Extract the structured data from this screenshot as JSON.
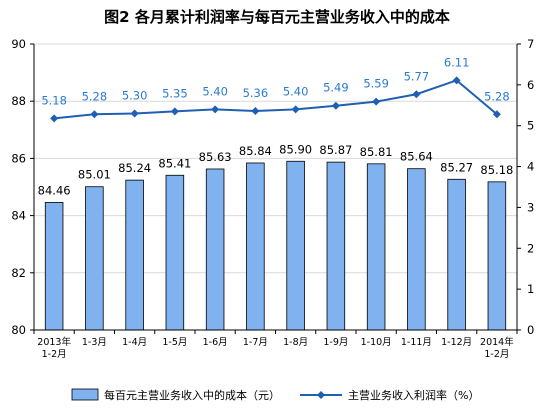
{
  "chart_data": {
    "type": "bar+line",
    "title": "图2  各月累计利润率与每百元主营业务收入中的成本",
    "categories": [
      [
        "2013年",
        "1-2月"
      ],
      [
        "1-3月"
      ],
      [
        "1-4月"
      ],
      [
        "1-5月"
      ],
      [
        "1-6月"
      ],
      [
        "1-7月"
      ],
      [
        "1-8月"
      ],
      [
        "1-9月"
      ],
      [
        "1-10月"
      ],
      [
        "1-11月"
      ],
      [
        "1-12月"
      ],
      [
        "2014年",
        "1-2月"
      ]
    ],
    "series": [
      {
        "name": "每百元主营业务收入中的成本（元）",
        "type": "bar",
        "axis": "left",
        "values": [
          84.46,
          85.01,
          85.24,
          85.41,
          85.63,
          85.84,
          85.9,
          85.87,
          85.81,
          85.64,
          85.27,
          85.18
        ],
        "labels": [
          "84.46",
          "85.01",
          "85.24",
          "85.41",
          "85.63",
          "85.84",
          "85.90",
          "85.87",
          "85.81",
          "85.64",
          "85.27",
          "85.18"
        ],
        "color": "#7fb2ef"
      },
      {
        "name": "主营业务收入利润率（%）",
        "type": "line",
        "axis": "right",
        "values": [
          5.18,
          5.28,
          5.3,
          5.35,
          5.4,
          5.36,
          5.4,
          5.49,
          5.59,
          5.77,
          6.11,
          5.28
        ],
        "labels": [
          "5.18",
          "5.28",
          "5.30",
          "5.35",
          "5.40",
          "5.36",
          "5.40",
          "5.49",
          "5.59",
          "5.77",
          "6.11",
          "5.28"
        ],
        "color": "#1f5fb4",
        "label_color": "#2a7ad4"
      }
    ],
    "left_axis": {
      "min": 80,
      "max": 90,
      "ticks": [
        "80",
        "82",
        "84",
        "86",
        "88",
        "90"
      ]
    },
    "right_axis": {
      "min": 0,
      "max": 7,
      "ticks": [
        "0",
        "1",
        "2",
        "3",
        "4",
        "5",
        "6",
        "7"
      ]
    },
    "grid": "horizontal",
    "legend_position": "bottom"
  }
}
